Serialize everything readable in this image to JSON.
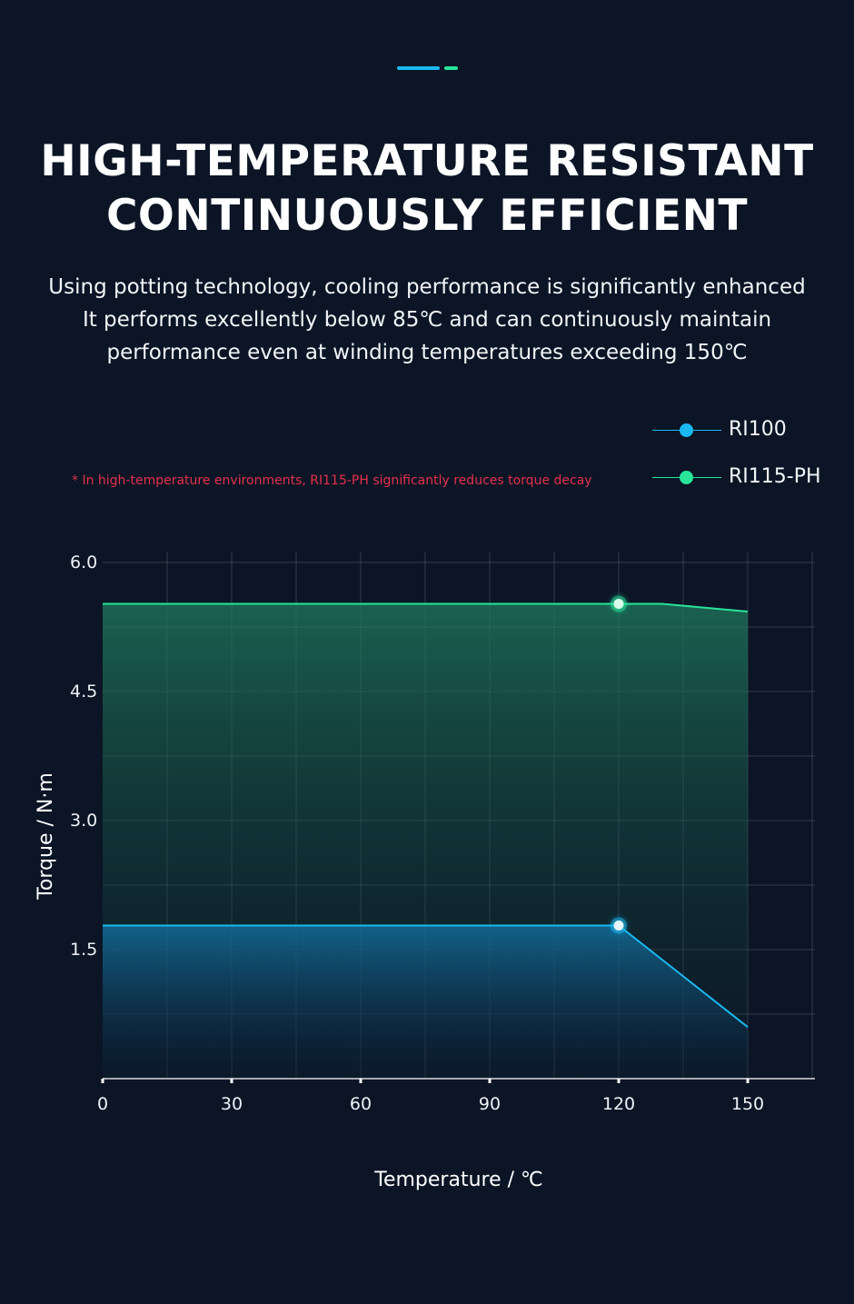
{
  "header": {
    "title_line1": "HIGH-TEMPERATURE RESISTANT",
    "title_line2": "CONTINUOUSLY EFFICIENT",
    "subtitle_lines": [
      "Using potting technology, cooling performance is significantly enhanced",
      "It performs excellently below 85℃ and can continuously maintain",
      "performance even at winding temperatures exceeding 150℃"
    ]
  },
  "note": "* In high-temperature environments, RI115-PH significantly reduces torque decay",
  "colors": {
    "background": "#0b1526",
    "accent_blue": "#1bb8f0",
    "accent_green": "#28e59a",
    "note_red": "#e5304b"
  },
  "chart_data": {
    "type": "area",
    "xlabel": "Temperature / ℃",
    "ylabel": "Torque / N·m",
    "xlim": [
      0,
      165
    ],
    "ylim": [
      0,
      6.0
    ],
    "x_ticks": [
      0,
      30,
      60,
      90,
      120,
      150
    ],
    "y_ticks": [
      1.5,
      3.0,
      4.5,
      6.0
    ],
    "x_tick_labels": [
      "0",
      "30",
      "60",
      "90",
      "120",
      "150"
    ],
    "y_tick_labels": [
      "1.5",
      "3.0",
      "4.5",
      "6.0"
    ],
    "grid": true,
    "legend_position": "top-right",
    "series": [
      {
        "name": "RI115-PH",
        "color": "#28e59a",
        "points": [
          [
            0,
            5.52
          ],
          [
            130,
            5.52
          ],
          [
            150,
            5.43
          ]
        ],
        "marker": [
          120,
          5.52
        ]
      },
      {
        "name": "RI100",
        "color": "#1bb8f0",
        "points": [
          [
            0,
            1.78
          ],
          [
            120,
            1.78
          ],
          [
            150,
            0.6
          ]
        ],
        "marker": [
          120,
          1.78
        ]
      }
    ]
  }
}
